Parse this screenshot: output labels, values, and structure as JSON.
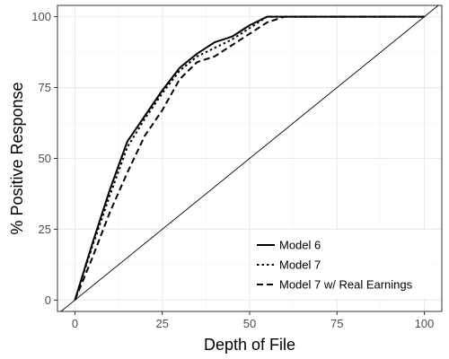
{
  "chart_data": {
    "type": "line",
    "title": "",
    "xlabel": "Depth of File",
    "ylabel": "% Positive Response",
    "xlim": [
      -5,
      105
    ],
    "ylim": [
      -4,
      104
    ],
    "xticks": [
      0,
      25,
      50,
      75,
      100
    ],
    "yticks": [
      0,
      25,
      50,
      75,
      100
    ],
    "xtick_labels": [
      "0",
      "25",
      "50",
      "75",
      "100"
    ],
    "ytick_labels": [
      "0",
      "25",
      "50",
      "75",
      "100"
    ],
    "grid": true,
    "legend_position": "bottom-right",
    "series": [
      {
        "name": "Model 6",
        "style": "solid",
        "color": "#000000",
        "x": [
          0,
          5,
          10,
          15,
          20,
          25,
          30,
          35,
          40,
          45,
          50,
          55,
          60,
          100
        ],
        "y": [
          0,
          20,
          39,
          56,
          65,
          74,
          82,
          87,
          91,
          93,
          97,
          100,
          100,
          100
        ]
      },
      {
        "name": "Model 7",
        "style": "dotted",
        "color": "#000000",
        "x": [
          0,
          5,
          10,
          15,
          20,
          25,
          30,
          35,
          40,
          45,
          50,
          55,
          60,
          100
        ],
        "y": [
          0,
          19,
          37,
          54,
          64,
          73,
          81,
          86,
          89,
          92,
          96,
          100,
          100,
          100
        ]
      },
      {
        "name": "Model 7 w/ Real Earnings",
        "style": "dashed",
        "color": "#000000",
        "x": [
          0,
          5,
          10,
          15,
          20,
          25,
          30,
          35,
          40,
          45,
          50,
          55,
          60,
          100
        ],
        "y": [
          0,
          15,
          31,
          45,
          58,
          67,
          78,
          84,
          86,
          90,
          94,
          98,
          100,
          100
        ]
      }
    ],
    "reference_line": {
      "x": [
        0,
        100
      ],
      "y": [
        0,
        100
      ],
      "style": "solid"
    }
  }
}
